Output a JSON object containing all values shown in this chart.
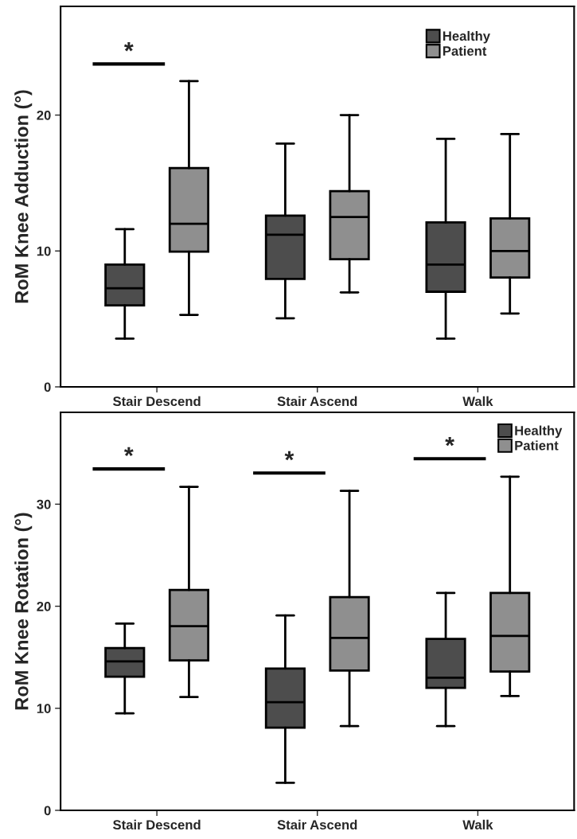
{
  "chart_data": [
    {
      "type": "box",
      "ylabel": "RoM Knee Adduction (°)",
      "categories": [
        "Stair Descend",
        "Stair Ascend",
        "Walk"
      ],
      "ylim": [
        0,
        28
      ],
      "yticks": [
        0,
        10,
        20
      ],
      "legend": "top right",
      "grid": false,
      "series": [
        {
          "name": "Healthy",
          "color": "#4d4d4d",
          "boxes": [
            {
              "low": 3.55,
              "q1": 6.0,
              "median": 7.25,
              "q3": 9.0,
              "high": 11.6
            },
            {
              "low": 5.05,
              "q1": 7.95,
              "median": 11.2,
              "q3": 12.6,
              "high": 17.9
            },
            {
              "low": 3.55,
              "q1": 7.0,
              "median": 9.0,
              "q3": 12.1,
              "high": 18.25
            }
          ]
        },
        {
          "name": "Patient",
          "color": "#8f8f8f",
          "boxes": [
            {
              "low": 5.3,
              "q1": 9.95,
              "median": 12.0,
              "q3": 16.1,
              "high": 22.5
            },
            {
              "low": 6.95,
              "q1": 9.4,
              "median": 12.5,
              "q3": 14.4,
              "high": 20.0
            },
            {
              "low": 5.4,
              "q1": 8.05,
              "median": 10.0,
              "q3": 12.4,
              "high": 18.6
            }
          ]
        }
      ],
      "annotations": [
        "*"
      ]
    },
    {
      "type": "box",
      "ylabel": "RoM Knee Rotation (°)",
      "categories": [
        "Stair Descend",
        "Stair Ascend",
        "Walk"
      ],
      "ylim": [
        0,
        39
      ],
      "yticks": [
        0,
        10,
        20,
        30
      ],
      "legend": "top right",
      "grid": false,
      "series": [
        {
          "name": "Healthy",
          "color": "#4d4d4d",
          "boxes": [
            {
              "low": 9.5,
              "q1": 13.1,
              "median": 14.6,
              "q3": 15.9,
              "high": 18.3
            },
            {
              "low": 2.7,
              "q1": 8.1,
              "median": 10.6,
              "q3": 13.9,
              "high": 19.1
            },
            {
              "low": 8.25,
              "q1": 12.0,
              "median": 13.0,
              "q3": 16.8,
              "high": 21.3
            }
          ]
        },
        {
          "name": "Patient",
          "color": "#8f8f8f",
          "boxes": [
            {
              "low": 11.1,
              "q1": 14.7,
              "median": 18.05,
              "q3": 21.6,
              "high": 31.7
            },
            {
              "low": 8.25,
              "q1": 13.7,
              "median": 16.9,
              "q3": 20.9,
              "high": 31.3
            },
            {
              "low": 11.2,
              "q1": 13.6,
              "median": 17.1,
              "q3": 21.3,
              "high": 32.7
            }
          ]
        }
      ],
      "annotations": [
        "*",
        "*",
        "*"
      ]
    }
  ]
}
